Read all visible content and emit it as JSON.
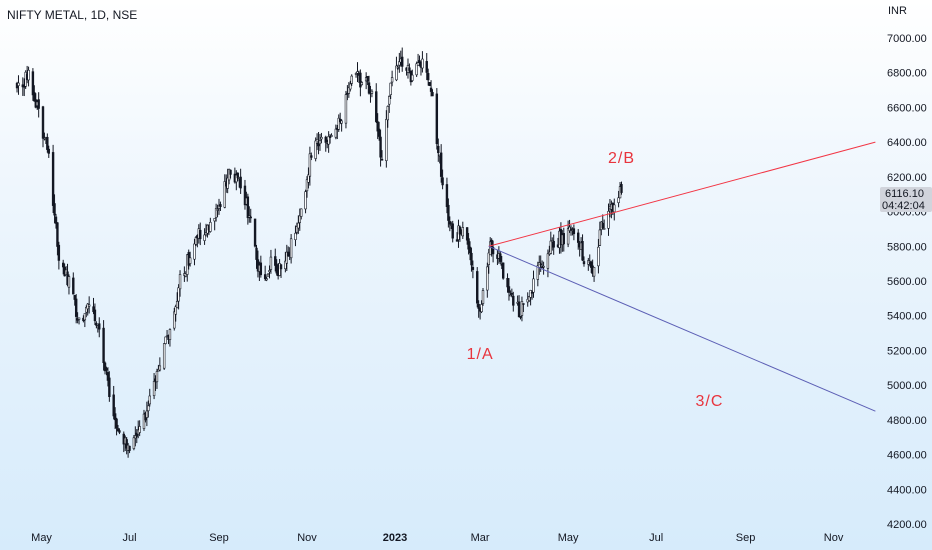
{
  "header": {
    "title": "NIFTY METAL, 1D, NSE",
    "currency": "INR"
  },
  "price_tag": {
    "price": "6116.10",
    "countdown": "04:42:04"
  },
  "colors": {
    "candle": "#131722",
    "resistance_line": "#f23645",
    "support_line": "#5c5fb5",
    "wave_label": "#e8343d",
    "price_tag_bg": "#d1d4dc"
  },
  "chart_data": {
    "type": "candlestick",
    "title": "NIFTY METAL, 1D, NSE",
    "y_axis": {
      "unit": "INR",
      "ticks": [
        4200,
        4400,
        4600,
        4800,
        5000,
        5200,
        5400,
        5600,
        5800,
        6000,
        6200,
        6400,
        6600,
        6800,
        7000
      ],
      "tick_labels": [
        "4200.00",
        "4400.00",
        "4600.00",
        "4800.00",
        "5000.00",
        "5200.00",
        "5400.00",
        "5600.00",
        "5800.00",
        "6000.00",
        "6200.00",
        "6400.00",
        "6600.00",
        "6800.00",
        "7000.00"
      ],
      "range": [
        4200,
        7100
      ],
      "position": "right"
    },
    "x_axis": {
      "ticks": [
        {
          "label": "May",
          "bold": false
        },
        {
          "label": "Jul",
          "bold": false
        },
        {
          "label": "Sep",
          "bold": false
        },
        {
          "label": "Nov",
          "bold": false
        },
        {
          "label": "2023",
          "bold": true
        },
        {
          "label": "Mar",
          "bold": false
        },
        {
          "label": "May",
          "bold": false
        },
        {
          "label": "Jul",
          "bold": false
        },
        {
          "label": "Sep",
          "bold": false
        },
        {
          "label": "Nov",
          "bold": false
        }
      ]
    },
    "path": [
      [
        "2022-04-14",
        6730
      ],
      [
        "2022-04-22",
        6780
      ],
      [
        "2022-04-29",
        6580
      ],
      [
        "2022-05-06",
        6300
      ],
      [
        "2022-05-13",
        5750
      ],
      [
        "2022-05-20",
        5600
      ],
      [
        "2022-05-27",
        5350
      ],
      [
        "2022-06-03",
        5450
      ],
      [
        "2022-06-10",
        5300
      ],
      [
        "2022-06-17",
        4950
      ],
      [
        "2022-06-24",
        4700
      ],
      [
        "2022-07-01",
        4620
      ],
      [
        "2022-07-08",
        4750
      ],
      [
        "2022-07-15",
        4900
      ],
      [
        "2022-07-22",
        5150
      ],
      [
        "2022-07-29",
        5300
      ],
      [
        "2022-08-05",
        5600
      ],
      [
        "2022-08-12",
        5750
      ],
      [
        "2022-08-19",
        5880
      ],
      [
        "2022-08-26",
        5900
      ],
      [
        "2022-09-02",
        6050
      ],
      [
        "2022-09-09",
        6250
      ],
      [
        "2022-09-16",
        6150
      ],
      [
        "2022-09-23",
        5950
      ],
      [
        "2022-09-30",
        5600
      ],
      [
        "2022-10-07",
        5700
      ],
      [
        "2022-10-14",
        5650
      ],
      [
        "2022-10-21",
        5800
      ],
      [
        "2022-10-28",
        6000
      ],
      [
        "2022-11-04",
        6350
      ],
      [
        "2022-11-11",
        6400
      ],
      [
        "2022-11-18",
        6450
      ],
      [
        "2022-11-25",
        6550
      ],
      [
        "2022-12-02",
        6800
      ],
      [
        "2022-12-09",
        6750
      ],
      [
        "2022-12-16",
        6700
      ],
      [
        "2022-12-23",
        6300
      ],
      [
        "2022-12-30",
        6800
      ],
      [
        "2023-01-06",
        6850
      ],
      [
        "2023-01-13",
        6780
      ],
      [
        "2023-01-20",
        6850
      ],
      [
        "2023-01-27",
        6650
      ],
      [
        "2023-02-03",
        6150
      ],
      [
        "2023-02-10",
        5850
      ],
      [
        "2023-02-17",
        5900
      ],
      [
        "2023-02-24",
        5650
      ],
      [
        "2023-03-01",
        5400
      ],
      [
        "2023-03-08",
        5800
      ],
      [
        "2023-03-15",
        5700
      ],
      [
        "2023-03-22",
        5500
      ],
      [
        "2023-03-29",
        5420
      ],
      [
        "2023-04-05",
        5550
      ],
      [
        "2023-04-12",
        5700
      ],
      [
        "2023-04-19",
        5800
      ],
      [
        "2023-04-26",
        5850
      ],
      [
        "2023-05-03",
        5880
      ],
      [
        "2023-05-10",
        5780
      ],
      [
        "2023-05-17",
        5650
      ],
      [
        "2023-05-24",
        5900
      ],
      [
        "2023-05-31",
        6000
      ],
      [
        "2023-06-07",
        6116
      ]
    ],
    "trendlines": [
      {
        "name": "resistance",
        "color": "#f23645",
        "from": [
          "2023-03-07",
          5800
        ],
        "to": [
          "2023-11-30",
          6400
        ]
      },
      {
        "name": "support",
        "color": "#5c5fb5",
        "from": [
          "2023-03-07",
          5800
        ],
        "to": [
          "2023-11-30",
          4850
        ]
      }
    ],
    "annotations": [
      {
        "text": "1/A",
        "x": "2023-03-01",
        "y": 5150
      },
      {
        "text": "2/B",
        "x": "2023-06-07",
        "y": 6280
      },
      {
        "text": "3/C",
        "x": "2023-08-07",
        "y": 4880
      }
    ],
    "last_price": 6116.1
  }
}
